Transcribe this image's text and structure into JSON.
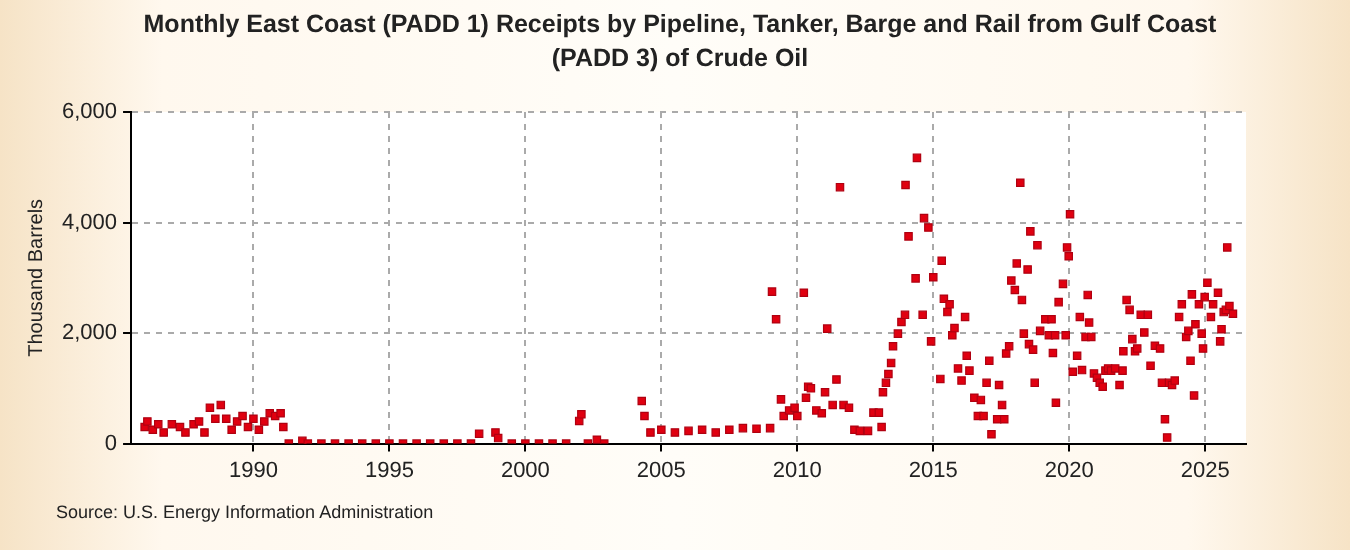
{
  "chart_data": {
    "type": "scatter",
    "title": "Monthly East Coast (PADD 1) Receipts by Pipeline, Tanker, Barge and Rail from Gulf Coast (PADD 3) of Crude Oil",
    "ylabel": "Thousand Barrels",
    "annotations": [
      "Source: U.S. Energy Information Administration"
    ],
    "marker": "square",
    "grid": true,
    "legend": false,
    "color": "#e00010",
    "xlim": [
      1985.5,
      2026.5
    ],
    "xticks": [
      1990,
      1995,
      2000,
      2005,
      2010,
      2015,
      2020,
      2025
    ],
    "ylim": [
      0,
      6000
    ],
    "yticks": [
      0,
      {
        "value": 2000,
        "label": "2,000"
      },
      {
        "value": 4000,
        "label": "4,000"
      },
      {
        "value": 6000,
        "label": "6,000"
      }
    ],
    "x": [
      1986.0,
      1986.1,
      1986.3,
      1986.5,
      1986.7,
      1987.0,
      1987.3,
      1987.5,
      1987.8,
      1988.0,
      1988.2,
      1988.4,
      1988.6,
      1988.8,
      1989.0,
      1989.2,
      1989.4,
      1989.6,
      1989.8,
      1990.0,
      1990.2,
      1990.4,
      1990.6,
      1990.8,
      1991.0,
      1991.1,
      1991.3,
      1991.8,
      1992.0,
      1992.5,
      1993.0,
      1993.5,
      1994.0,
      1994.5,
      1995.0,
      1995.5,
      1996.0,
      1996.5,
      1997.0,
      1997.5,
      1998.0,
      1998.3,
      1998.9,
      1999.0,
      1999.5,
      2000.0,
      2000.5,
      2001.0,
      2001.5,
      2001.98,
      2002.06,
      2002.3,
      2002.63,
      2002.9,
      2004.28,
      2004.38,
      2004.6,
      2005.0,
      2005.5,
      2006.0,
      2006.5,
      2007.0,
      2007.5,
      2008.0,
      2008.5,
      2009.0,
      2009.07,
      2009.22,
      2009.4,
      2009.5,
      2009.7,
      2009.9,
      2010.0,
      2010.24,
      2010.32,
      2010.4,
      2010.5,
      2010.7,
      2010.9,
      2011.02,
      2011.1,
      2011.3,
      2011.44,
      2011.57,
      2011.7,
      2011.9,
      2012.1,
      2012.3,
      2012.6,
      2012.8,
      2013.0,
      2013.1,
      2013.15,
      2013.26,
      2013.35,
      2013.45,
      2013.52,
      2013.7,
      2013.83,
      2013.96,
      2013.98,
      2014.09,
      2014.35,
      2014.4,
      2014.61,
      2014.66,
      2014.82,
      2014.92,
      2015.0,
      2015.26,
      2015.31,
      2015.39,
      2015.52,
      2015.6,
      2015.7,
      2015.78,
      2015.91,
      2016.04,
      2016.17,
      2016.23,
      2016.33,
      2016.51,
      2016.64,
      2016.75,
      2016.85,
      2016.96,
      2017.06,
      2017.14,
      2017.35,
      2017.42,
      2017.53,
      2017.61,
      2017.68,
      2017.79,
      2017.87,
      2018.0,
      2018.07,
      2018.2,
      2018.26,
      2018.33,
      2018.47,
      2018.52,
      2018.57,
      2018.67,
      2018.73,
      2018.83,
      2018.93,
      2019.12,
      2019.25,
      2019.35,
      2019.4,
      2019.48,
      2019.51,
      2019.61,
      2019.77,
      2019.87,
      2019.92,
      2019.98,
      2020.03,
      2020.13,
      2020.29,
      2020.39,
      2020.47,
      2020.6,
      2020.68,
      2020.73,
      2020.81,
      2020.91,
      2021.02,
      2021.12,
      2021.23,
      2021.33,
      2021.43,
      2021.54,
      2021.69,
      2021.85,
      2021.96,
      2021.99,
      2022.11,
      2022.22,
      2022.32,
      2022.42,
      2022.5,
      2022.63,
      2022.76,
      2022.89,
      2022.99,
      2023.15,
      2023.34,
      2023.41,
      2023.52,
      2023.6,
      2023.67,
      2023.78,
      2023.88,
      2024.04,
      2024.14,
      2024.3,
      2024.38,
      2024.46,
      2024.51,
      2024.59,
      2024.64,
      2024.77,
      2024.87,
      2024.92,
      2024.98,
      2025.08,
      2025.21,
      2025.29,
      2025.47,
      2025.55,
      2025.6,
      2025.68,
      2025.76,
      2025.81,
      2025.89,
      2026.02
    ],
    "values": [
      300,
      400,
      250,
      350,
      200,
      350,
      300,
      200,
      350,
      400,
      200,
      650,
      450,
      700,
      450,
      250,
      400,
      500,
      300,
      450,
      250,
      400,
      550,
      500,
      550,
      300,
      0,
      50,
      0,
      0,
      0,
      0,
      0,
      0,
      0,
      0,
      0,
      0,
      0,
      0,
      0,
      180,
      200,
      100,
      0,
      0,
      0,
      0,
      0,
      410,
      530,
      0,
      70,
      0,
      770,
      500,
      200,
      250,
      200,
      230,
      250,
      200,
      250,
      280,
      270,
      280,
      2750,
      2250,
      800,
      500,
      600,
      650,
      500,
      2730,
      830,
      1030,
      1000,
      600,
      550,
      930,
      2080,
      700,
      1160,
      4640,
      700,
      650,
      250,
      230,
      230,
      560,
      560,
      300,
      930,
      1100,
      1260,
      1460,
      1760,
      1990,
      2200,
      2330,
      4680,
      3750,
      2990,
      5170,
      2330,
      4080,
      3910,
      1850,
      3010,
      1170,
      3310,
      2620,
      2380,
      2520,
      1960,
      2090,
      1360,
      1140,
      2290,
      1590,
      1320,
      830,
      500,
      790,
      500,
      1100,
      1500,
      170,
      440,
      1060,
      700,
      440,
      1630,
      1760,
      2950,
      2780,
      3260,
      4720,
      2600,
      1990,
      3150,
      1800,
      3840,
      1700,
      1100,
      3590,
      2040,
      2250,
      1960,
      2250,
      1640,
      1960,
      740,
      2560,
      2890,
      1960,
      3550,
      3390,
      4150,
      1300,
      1590,
      2290,
      1330,
      1930,
      2690,
      2190,
      1930,
      1270,
      1190,
      1100,
      1030,
      1320,
      1360,
      1320,
      1360,
      1060,
      1320,
      1670,
      2600,
      2420,
      1890,
      1670,
      1720,
      2330,
      2010,
      2330,
      1410,
      1770,
      1720,
      1100,
      440,
      110,
      1100,
      1060,
      1140,
      2290,
      2520,
      1930,
      2040,
      1500,
      2700,
      870,
      2160,
      2520,
      1990,
      1720,
      2650,
      2910,
      2290,
      2520,
      2730,
      1850,
      2070,
      2380,
      2420,
      3550,
      2490,
      2350
    ]
  }
}
